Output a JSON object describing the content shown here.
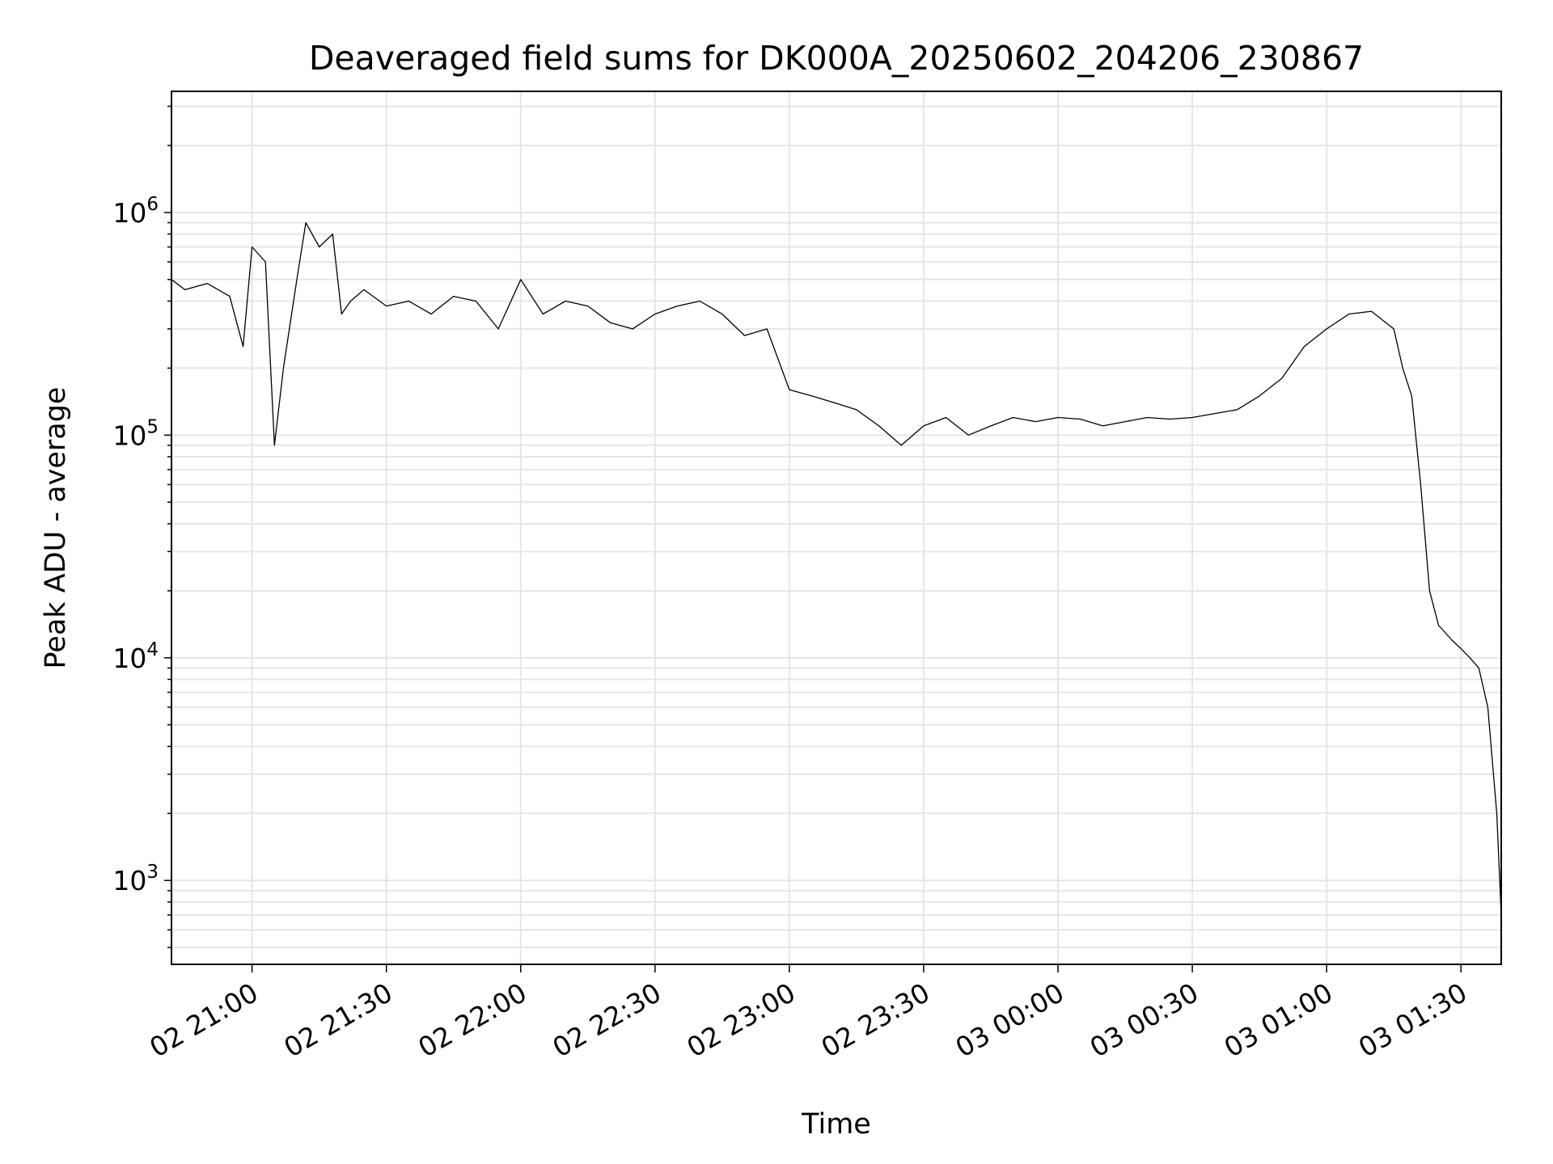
{
  "chart_data": {
    "type": "line",
    "title": "Deaveraged field sums for DK000A_20250602_204206_230867",
    "xlabel": "Time",
    "ylabel": "Peak ADU - average",
    "yscale": "log",
    "ylim": [
      420,
      3500000
    ],
    "xlim": [
      "2025-06-02 20:42:00",
      "2025-06-03 01:39:00"
    ],
    "grid": true,
    "x_ticks": [
      {
        "t": "2025-06-02 21:00",
        "label": "02 21:00"
      },
      {
        "t": "2025-06-02 21:30",
        "label": "02 21:30"
      },
      {
        "t": "2025-06-02 22:00",
        "label": "02 22:00"
      },
      {
        "t": "2025-06-02 22:30",
        "label": "02 22:30"
      },
      {
        "t": "2025-06-02 23:00",
        "label": "02 23:00"
      },
      {
        "t": "2025-06-02 23:30",
        "label": "02 23:30"
      },
      {
        "t": "2025-06-03 00:00",
        "label": "03 00:00"
      },
      {
        "t": "2025-06-03 00:30",
        "label": "03 00:30"
      },
      {
        "t": "2025-06-03 01:00",
        "label": "03 01:00"
      },
      {
        "t": "2025-06-03 01:30",
        "label": "03 01:30"
      }
    ],
    "y_ticks": [
      {
        "value": 1000,
        "base": "10",
        "exp": "3"
      },
      {
        "value": 10000,
        "base": "10",
        "exp": "4"
      },
      {
        "value": 100000,
        "base": "10",
        "exp": "5"
      },
      {
        "value": 1000000,
        "base": "10",
        "exp": "6"
      }
    ],
    "series": [
      {
        "color": "#000000",
        "x": [
          "2025-06-02 20:42",
          "2025-06-02 20:45",
          "2025-06-02 20:50",
          "2025-06-02 20:55",
          "2025-06-02 20:58",
          "2025-06-02 21:00",
          "2025-06-02 21:03",
          "2025-06-02 21:05",
          "2025-06-02 21:07",
          "2025-06-02 21:10",
          "2025-06-02 21:12",
          "2025-06-02 21:15",
          "2025-06-02 21:18",
          "2025-06-02 21:20",
          "2025-06-02 21:22",
          "2025-06-02 21:25",
          "2025-06-02 21:30",
          "2025-06-02 21:35",
          "2025-06-02 21:40",
          "2025-06-02 21:45",
          "2025-06-02 21:50",
          "2025-06-02 21:55",
          "2025-06-02 22:00",
          "2025-06-02 22:05",
          "2025-06-02 22:10",
          "2025-06-02 22:15",
          "2025-06-02 22:20",
          "2025-06-02 22:25",
          "2025-06-02 22:30",
          "2025-06-02 22:35",
          "2025-06-02 22:40",
          "2025-06-02 22:45",
          "2025-06-02 22:50",
          "2025-06-02 22:55",
          "2025-06-02 23:00",
          "2025-06-02 23:05",
          "2025-06-02 23:10",
          "2025-06-02 23:15",
          "2025-06-02 23:20",
          "2025-06-02 23:25",
          "2025-06-02 23:30",
          "2025-06-02 23:35",
          "2025-06-02 23:40",
          "2025-06-02 23:45",
          "2025-06-02 23:50",
          "2025-06-02 23:55",
          "2025-06-03 00:00",
          "2025-06-03 00:05",
          "2025-06-03 00:10",
          "2025-06-03 00:15",
          "2025-06-03 00:20",
          "2025-06-03 00:25",
          "2025-06-03 00:30",
          "2025-06-03 00:35",
          "2025-06-03 00:40",
          "2025-06-03 00:45",
          "2025-06-03 00:50",
          "2025-06-03 00:55",
          "2025-06-03 01:00",
          "2025-06-03 01:05",
          "2025-06-03 01:10",
          "2025-06-03 01:15",
          "2025-06-03 01:17",
          "2025-06-03 01:19",
          "2025-06-03 01:21",
          "2025-06-03 01:23",
          "2025-06-03 01:25",
          "2025-06-03 01:28",
          "2025-06-03 01:30",
          "2025-06-03 01:32",
          "2025-06-03 01:34",
          "2025-06-03 01:36",
          "2025-06-03 01:38",
          "2025-06-03 01:39"
        ],
        "y": [
          500000,
          450000,
          480000,
          420000,
          250000,
          700000,
          600000,
          90000,
          200000,
          500000,
          900000,
          700000,
          800000,
          350000,
          400000,
          450000,
          380000,
          400000,
          350000,
          420000,
          400000,
          300000,
          500000,
          350000,
          400000,
          380000,
          320000,
          300000,
          350000,
          380000,
          400000,
          350000,
          280000,
          300000,
          160000,
          150000,
          140000,
          130000,
          110000,
          90000,
          110000,
          120000,
          100000,
          110000,
          120000,
          115000,
          120000,
          118000,
          110000,
          115000,
          120000,
          118000,
          120000,
          125000,
          130000,
          150000,
          180000,
          250000,
          300000,
          350000,
          360000,
          300000,
          200000,
          150000,
          60000,
          20000,
          14000,
          12000,
          11000,
          10000,
          9000,
          6000,
          2000,
          700
        ]
      }
    ]
  }
}
